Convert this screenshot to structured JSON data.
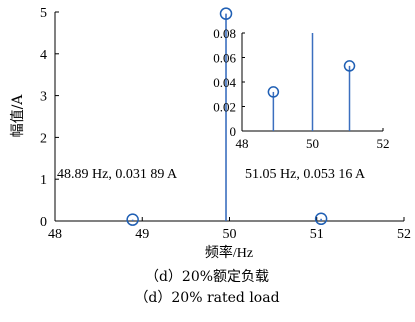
{
  "chart_data": {
    "type": "stem",
    "xlabel": "频率/Hz",
    "ylabel": "幅值/A",
    "xlim": [
      48,
      52
    ],
    "ylim": [
      0,
      5
    ],
    "xticks": [
      "48",
      "49",
      "50",
      "51",
      "52"
    ],
    "yticks": [
      "0",
      "1",
      "2",
      "3",
      "4",
      "5"
    ],
    "series": [
      {
        "x": [
          48.89,
          49.96,
          51.05
        ],
        "y": [
          0.03189,
          4.96,
          0.05316
        ]
      }
    ],
    "marker_color": "#1f5fb4",
    "stem_color": "#3b6fbf",
    "annotations": [
      {
        "text": "48.89 Hz, 0.031 89 A"
      },
      {
        "text": "51.05 Hz, 0.053 16 A"
      }
    ],
    "inset": {
      "xlim": [
        48,
        52
      ],
      "ylim": [
        0,
        0.08
      ],
      "xticks": [
        "48",
        "50",
        "52"
      ],
      "yticks": [
        "0",
        "0.02",
        "0.04",
        "0.06",
        "0.08"
      ],
      "series": [
        {
          "x": [
            48.89,
            50.0,
            51.05
          ],
          "y": [
            0.03189,
            0.08,
            0.05316
          ]
        }
      ],
      "marker_on": [
        true,
        false,
        true
      ]
    },
    "caption_cn": "（d）20%额定负载",
    "caption_en": "（d）20% rated load"
  }
}
